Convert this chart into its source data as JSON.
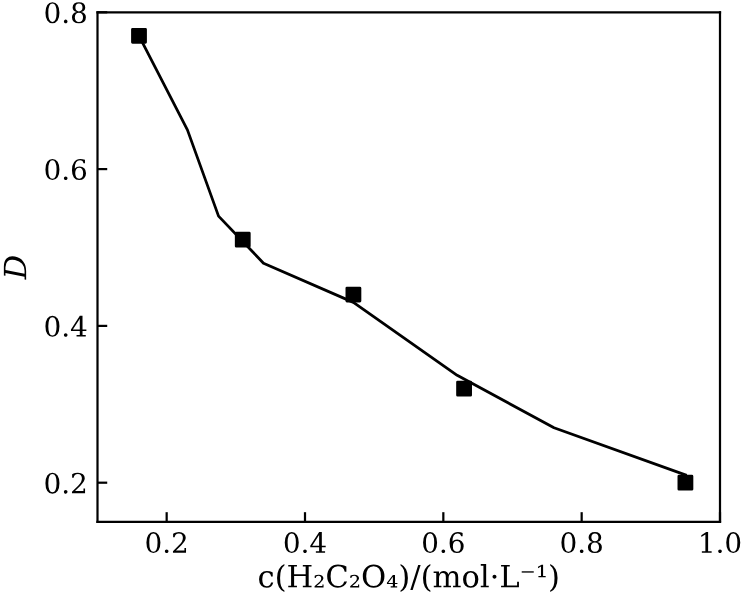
{
  "chart_data": {
    "type": "scatter",
    "xlabel": "c(H₂C₂O₄)/(mol·L⁻¹)",
    "ylabel": "D",
    "xlim": [
      0.1,
      1.0
    ],
    "ylim": [
      0.15,
      0.8
    ],
    "xticks": [
      0.2,
      0.4,
      0.6,
      0.8,
      {
        "value": 1.0,
        "label": "1.0"
      }
    ],
    "yticks": [
      0.2,
      0.4,
      0.6,
      0.8
    ],
    "grid": false,
    "marker": "square",
    "series": [
      {
        "color": "#000000",
        "x": [
          0.16,
          0.31,
          0.47,
          0.63,
          0.95
        ],
        "values": [
          0.77,
          0.51,
          0.44,
          0.32,
          0.2
        ]
      },
      {
        "type": "line",
        "color": "#000000",
        "marker": "none",
        "line_style": "solid",
        "x": [
          0.16,
          0.23,
          0.275,
          0.34,
          0.47,
          0.62,
          0.76,
          0.95
        ],
        "values": [
          0.77,
          0.65,
          0.54,
          0.48,
          0.43,
          0.337,
          0.27,
          0.21
        ]
      }
    ]
  }
}
